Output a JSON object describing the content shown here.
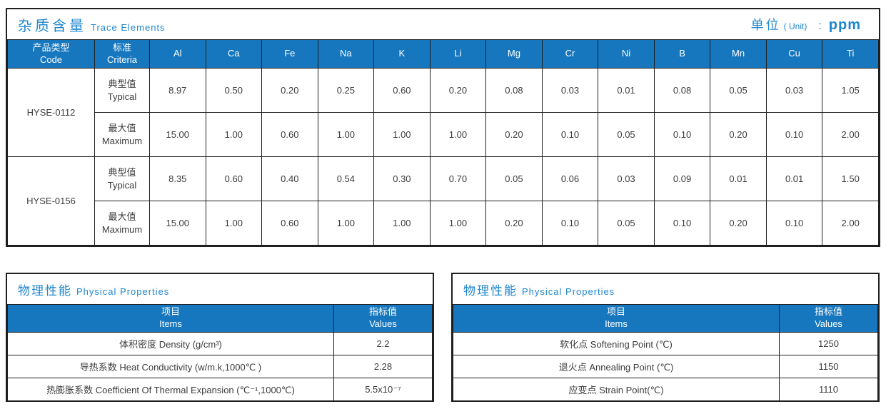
{
  "colors": {
    "accent_fill": "#1777be",
    "title_blue": "#1e86ce",
    "border": "#1f1f1f"
  },
  "trace": {
    "title_zh": "杂质含量",
    "title_en": "Trace Elements",
    "unit_label_zh": "单位",
    "unit_label_en": "( Unit)",
    "unit_sep": ":",
    "unit_value": "ppm",
    "col_code_zh": "产品类型",
    "col_code_en": "Code",
    "col_criteria_zh": "标准",
    "col_criteria_en": "Criteria",
    "elements": [
      "Al",
      "Ca",
      "Fe",
      "Na",
      "K",
      "Li",
      "Mg",
      "Cr",
      "Ni",
      "B",
      "Mn",
      "Cu",
      "Ti"
    ],
    "products": [
      {
        "code": "HYSE-0112",
        "rows": [
          {
            "criteria_zh": "典型值",
            "criteria_en": "Typical",
            "values": [
              "8.97",
              "0.50",
              "0.20",
              "0.25",
              "0.60",
              "0.20",
              "0.08",
              "0.03",
              "0.01",
              "0.08",
              "0.05",
              "0.03",
              "1.05"
            ]
          },
          {
            "criteria_zh": "最大值",
            "criteria_en": "Maximum",
            "values": [
              "15.00",
              "1.00",
              "0.60",
              "1.00",
              "1.00",
              "1.00",
              "0.20",
              "0.10",
              "0.05",
              "0.10",
              "0.20",
              "0.10",
              "2.00"
            ]
          }
        ]
      },
      {
        "code": "HYSE-0156",
        "rows": [
          {
            "criteria_zh": "典型值",
            "criteria_en": "Typical",
            "values": [
              "8.35",
              "0.60",
              "0.40",
              "0.54",
              "0.30",
              "0.70",
              "0.05",
              "0.06",
              "0.03",
              "0.09",
              "0.01",
              "0.01",
              "1.50"
            ]
          },
          {
            "criteria_zh": "最大值",
            "criteria_en": "Maximum",
            "values": [
              "15.00",
              "1.00",
              "0.60",
              "1.00",
              "1.00",
              "1.00",
              "0.20",
              "0.10",
              "0.05",
              "0.10",
              "0.20",
              "0.10",
              "2.00"
            ]
          }
        ]
      }
    ]
  },
  "physical_left": {
    "title_zh": "物理性能",
    "title_en": "Physical Properties",
    "col_item_zh": "项目",
    "col_item_en": "Items",
    "col_value_zh": "指标值",
    "col_value_en": "Values",
    "rows": [
      {
        "item": "体积密度 Density (g/cm³)",
        "value": "2.2"
      },
      {
        "item": "导热系数 Heat Conductivity (w/m.k,1000℃ )",
        "value": "2.28"
      },
      {
        "item": "热膨胀系数 Coefficient Of Thermal Expansion (℃⁻¹,1000℃)",
        "value": "5.5x10⁻⁷"
      }
    ]
  },
  "physical_right": {
    "title_zh": "物理性能",
    "title_en": "Physical Properties",
    "col_item_zh": "项目",
    "col_item_en": "Items",
    "col_value_zh": "指标值",
    "col_value_en": "Values",
    "rows": [
      {
        "item": "软化点 Softening Point (℃)",
        "value": "1250"
      },
      {
        "item": "退火点 Annealing Point (℃)",
        "value": "1150"
      },
      {
        "item": "应变点 Strain Point(℃)",
        "value": "1110"
      }
    ]
  }
}
